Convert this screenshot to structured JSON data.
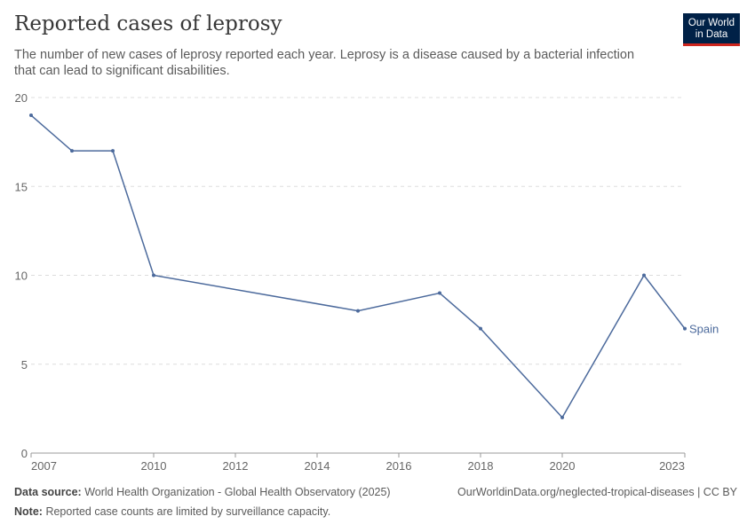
{
  "title": "Reported cases of leprosy",
  "subtitle": "The number of new cases of leprosy reported each year. Leprosy is a disease caused by a bacterial infection that can lead to significant disabilities.",
  "logo": {
    "line1": "Our World",
    "line2": "in Data"
  },
  "footer": {
    "source_label": "Data source:",
    "source": "World Health Organization - Global Health Observatory (2025)",
    "url": "OurWorldinData.org/neglected-tropical-diseases | CC BY",
    "note_label": "Note:",
    "note": "Reported case counts are limited by surveillance capacity."
  },
  "chart_data": {
    "type": "line",
    "title": "Reported cases of leprosy",
    "xlim": [
      2007,
      2023
    ],
    "ylim": [
      0,
      20
    ],
    "x_ticks": [
      "2007",
      "2010",
      "2012",
      "2014",
      "2016",
      "2018",
      "2020",
      "2023"
    ],
    "y_ticks": [
      "0",
      "5",
      "10",
      "15",
      "20"
    ],
    "grid": "horizontal dashed",
    "series": [
      {
        "name": "Spain",
        "color": "#4c6a9c",
        "x": [
          2007,
          2008,
          2009,
          2010,
          2015,
          2017,
          2018,
          2020,
          2022,
          2023
        ],
        "values": [
          19,
          17,
          17,
          10,
          8,
          9,
          7,
          2,
          10,
          7
        ]
      }
    ]
  }
}
